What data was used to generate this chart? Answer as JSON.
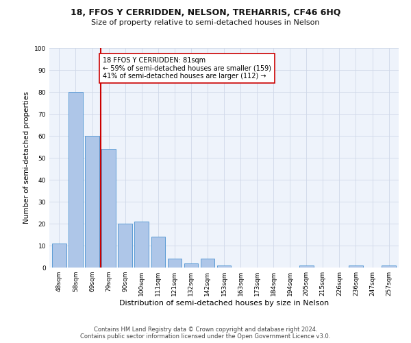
{
  "title": "18, FFOS Y CERRIDDEN, NELSON, TREHARRIS, CF46 6HQ",
  "subtitle": "Size of property relative to semi-detached houses in Nelson",
  "xlabel": "Distribution of semi-detached houses by size in Nelson",
  "ylabel": "Number of semi-detached properties",
  "categories": [
    "48sqm",
    "58sqm",
    "69sqm",
    "79sqm",
    "90sqm",
    "100sqm",
    "111sqm",
    "121sqm",
    "132sqm",
    "142sqm",
    "153sqm",
    "163sqm",
    "173sqm",
    "184sqm",
    "194sqm",
    "205sqm",
    "215sqm",
    "226sqm",
    "236sqm",
    "247sqm",
    "257sqm"
  ],
  "values": [
    11,
    80,
    60,
    54,
    20,
    21,
    14,
    4,
    2,
    4,
    1,
    0,
    0,
    0,
    0,
    1,
    0,
    0,
    1,
    0,
    1
  ],
  "bar_color": "#aec6e8",
  "bar_edge_color": "#5b9bd5",
  "marker_line_index": 2.5,
  "marker_label": "18 FFOS Y CERRIDDEN: 81sqm",
  "marker_pct_smaller": "59% of semi-detached houses are smaller (159)",
  "marker_pct_larger": "41% of semi-detached houses are larger (112)",
  "marker_color": "#cc0000",
  "annotation_box_color": "#ffffff",
  "annotation_box_edge": "#cc0000",
  "grid_color": "#d0d8e8",
  "bg_color": "#eef3fb",
  "footer_line1": "Contains HM Land Registry data © Crown copyright and database right 2024.",
  "footer_line2": "Contains public sector information licensed under the Open Government Licence v3.0.",
  "ylim": [
    0,
    100
  ],
  "title_fontsize": 9,
  "subtitle_fontsize": 8,
  "tick_fontsize": 6.5,
  "ylabel_fontsize": 7.5,
  "xlabel_fontsize": 8,
  "annotation_fontsize": 7,
  "footer_fontsize": 6
}
